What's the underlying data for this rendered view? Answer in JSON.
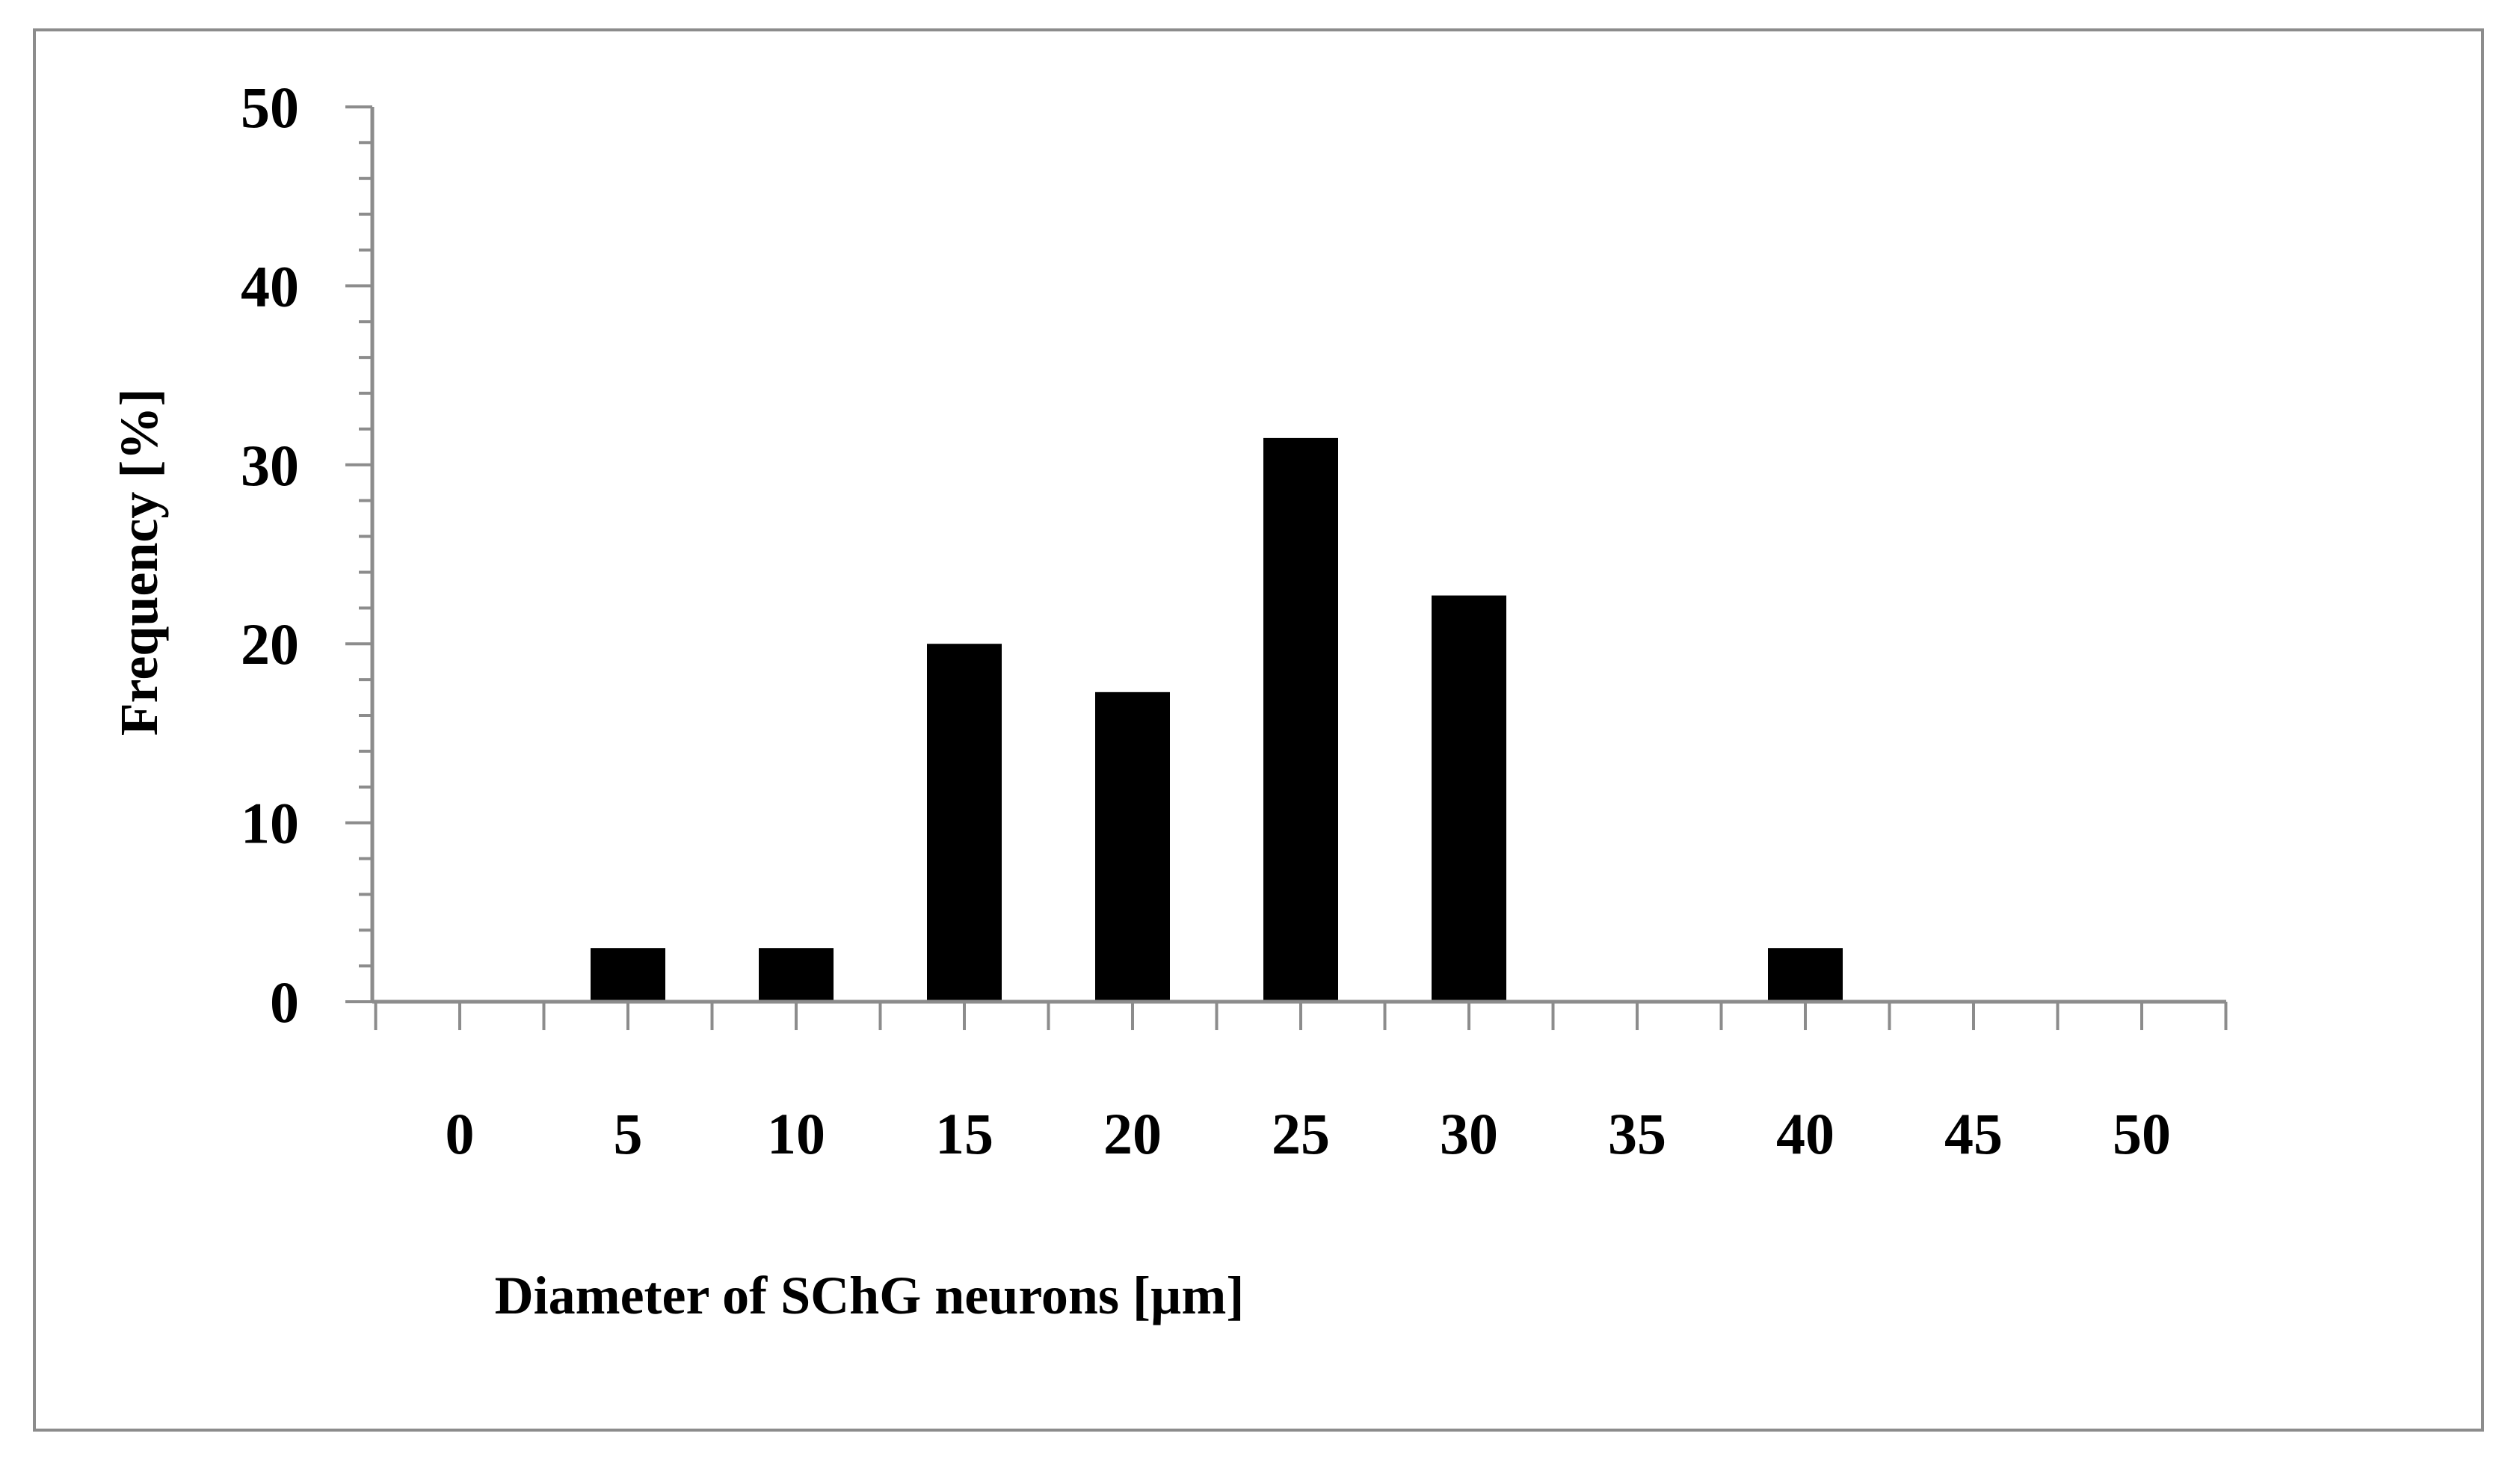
{
  "chart_data": {
    "type": "bar",
    "categories": [
      "0",
      "5",
      "10",
      "15",
      "20",
      "25",
      "30",
      "35",
      "40",
      "45",
      "50"
    ],
    "values": [
      0,
      3,
      3,
      20,
      17.3,
      31.5,
      22.7,
      0,
      3,
      0,
      0
    ],
    "xlabel": "Diameter of SChG neurons [µm]",
    "ylabel": "Frequency [%]",
    "ylim": [
      0,
      50
    ],
    "yticks": [
      "0",
      "10",
      "20",
      "30",
      "40",
      "50"
    ],
    "grid": false,
    "legend": "none",
    "colors": {
      "bar": "#000000",
      "axis": "#8c8c8c",
      "frame": "#8c8c8c"
    }
  }
}
